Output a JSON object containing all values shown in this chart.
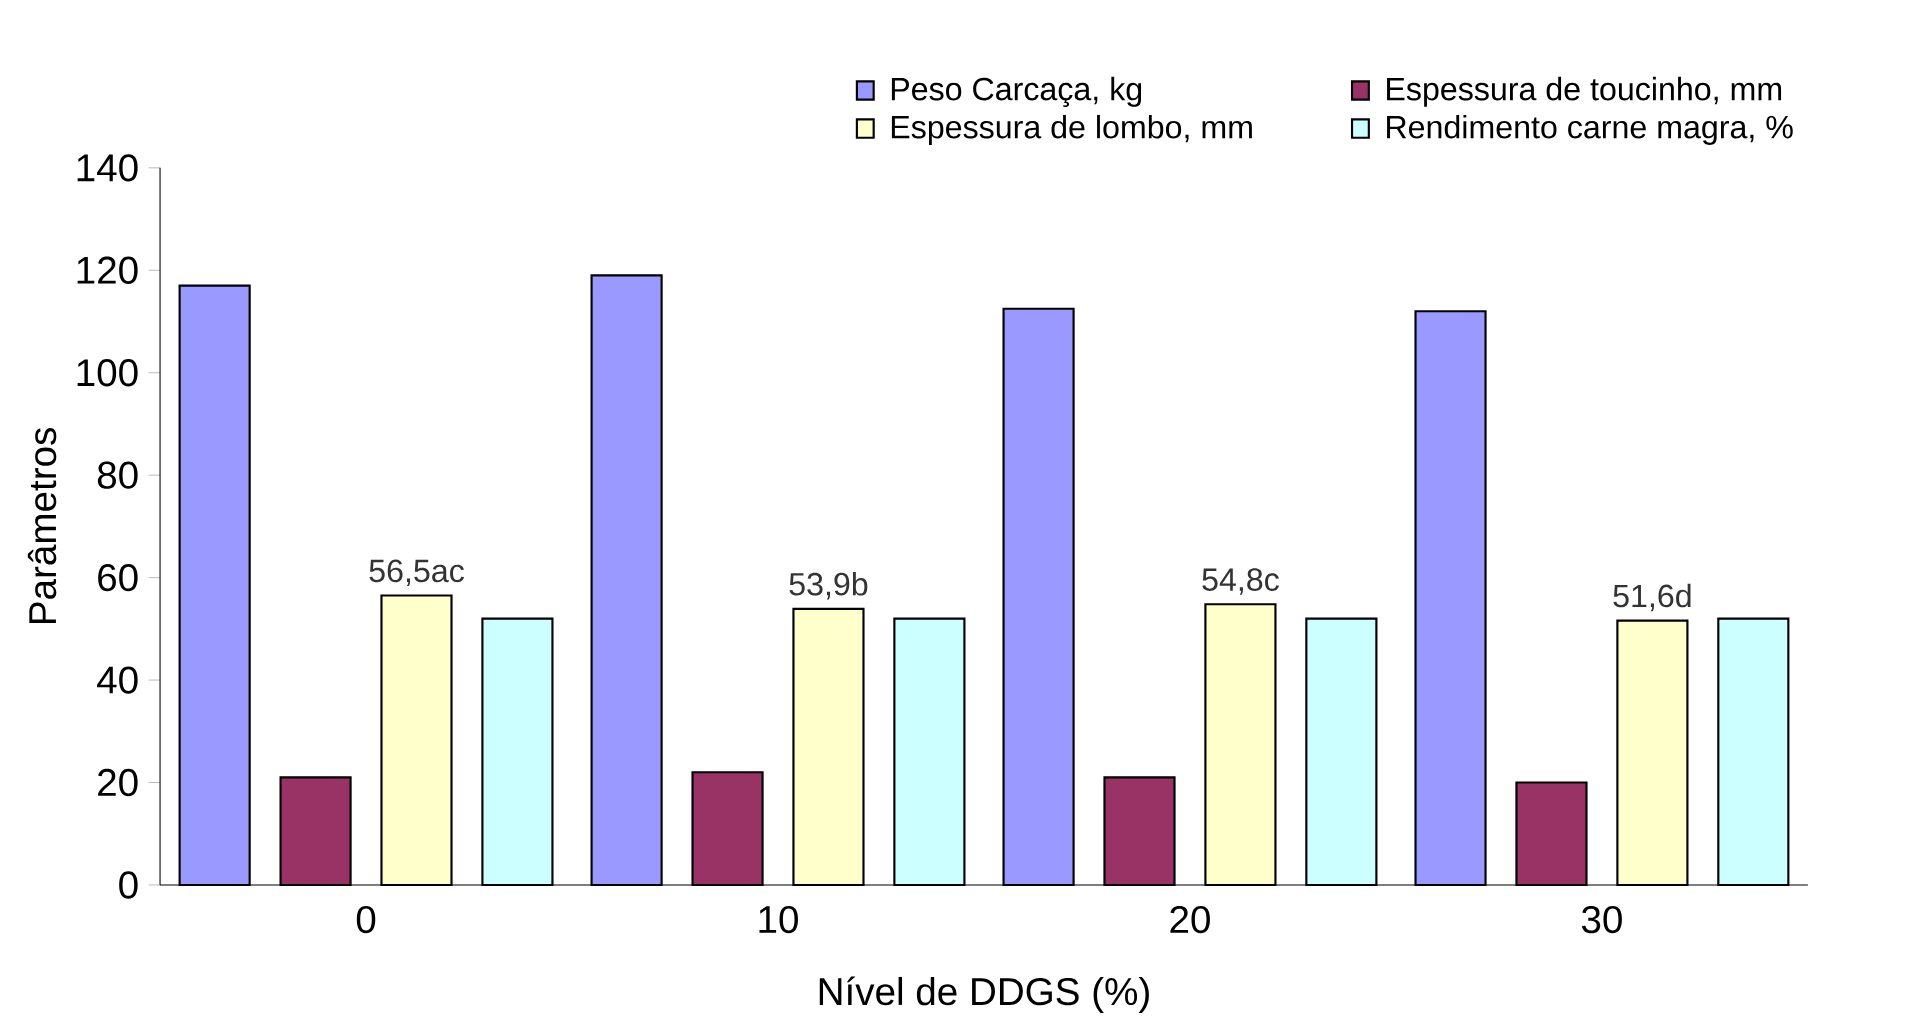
{
  "chart_data": {
    "type": "bar",
    "xlabel": "Nível de DDGS (%)",
    "ylabel": "Parâmetros",
    "categories": [
      "0",
      "10",
      "20",
      "30"
    ],
    "ylim": [
      0,
      140
    ],
    "yticks": [
      0,
      20,
      40,
      60,
      80,
      100,
      120,
      140
    ],
    "legend": "top right",
    "series": [
      {
        "name": "Peso Carcaça, kg",
        "color": "#9999ff",
        "values": [
          117,
          119,
          112.5,
          112
        ]
      },
      {
        "name": "Espessura de toucinho, mm",
        "color": "#993366",
        "values": [
          21,
          22,
          21,
          20
        ]
      },
      {
        "name": "Espessura de lombo, mm",
        "color": "#ffffcc",
        "values": [
          56.5,
          53.9,
          54.8,
          51.6
        ],
        "value_labels": [
          "56,5ac",
          "53,9b",
          "54,8c",
          "51,6d"
        ]
      },
      {
        "name": "Rendimento  carne magra, %",
        "color": "#ccffff",
        "values": [
          52,
          52,
          52,
          52
        ]
      }
    ]
  }
}
